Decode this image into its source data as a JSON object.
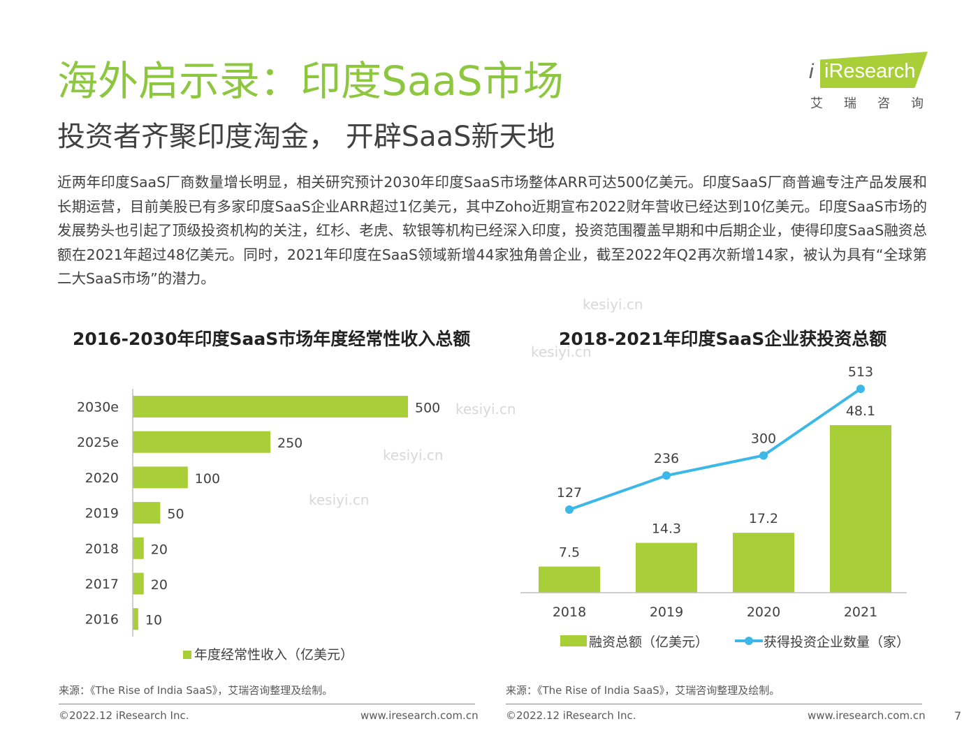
{
  "header": {
    "title": "海外启示录：印度SaaS市场",
    "subtitle": "投资者齐聚印度淘金， 开辟SaaS新天地"
  },
  "logo": {
    "brand": "iResearch",
    "brand_cn": "艾瑞咨询"
  },
  "body_text": "近两年印度SaaS厂商数量增长明显，相关研究预计2030年印度SaaS市场整体ARR可达500亿美元。印度SaaS厂商普遍专注产品发展和长期运营，目前美股已有多家印度SaaS企业ARR超过1亿美元，其中Zoho近期宣布2022财年营收已经达到10亿美元。印度SaaS市场的发展势头也引起了顶级投资机构的关注，红杉、老虎、软银等机构已经深入印度，投资范围覆盖早期和中后期企业，使得印度SaaS融资总额在2021年超过48亿美元。同时，2021年印度在SaaS领域新增44家独角兽企业，截至2022年Q2再次新增14家，被认为具有“全球第二大SaaS市场”的潜力。",
  "watermark": "kesiyi.cn",
  "chart_data": [
    {
      "type": "bar",
      "orientation": "horizontal",
      "title": "2016-2030年印度SaaS市场年度经常性收入总额",
      "categories": [
        "2030e",
        "2025e",
        "2020",
        "2019",
        "2018",
        "2017",
        "2016"
      ],
      "series": [
        {
          "name": "年度经常性收入（亿美元）",
          "values": [
            500,
            250,
            100,
            50,
            20,
            20,
            10
          ],
          "color": "#a9cf38"
        }
      ],
      "xlim": [
        0,
        500
      ],
      "legend": "bottom",
      "grid": false
    },
    {
      "type": "bar",
      "title": "2018-2021年印度SaaS企业获投资总额",
      "categories": [
        "2018",
        "2019",
        "2020",
        "2021"
      ],
      "series": [
        {
          "name": "融资总额（亿美元）",
          "type": "bar",
          "values": [
            7.5,
            14.3,
            17.2,
            48.1
          ],
          "color": "#a9cf38"
        },
        {
          "name": "获得投资企业数量（家）",
          "type": "line",
          "values": [
            127,
            236,
            300,
            513
          ],
          "color": "#3bb8e8"
        }
      ],
      "legend": "bottom",
      "grid": false
    }
  ],
  "footer": {
    "source_left": "来源：《The Rise of India SaaS》，艾瑞咨询整理及绘制。",
    "source_right": "来源：《The Rise of India SaaS》，艾瑞咨询整理及绘制。",
    "copyright_left": "©2022.12 iResearch Inc.",
    "url_left": "www.iresearch.com.cn",
    "copyright_right": "©2022.12 iResearch Inc.",
    "url_right": "www.iresearch.com.cn",
    "page_number": "7"
  }
}
